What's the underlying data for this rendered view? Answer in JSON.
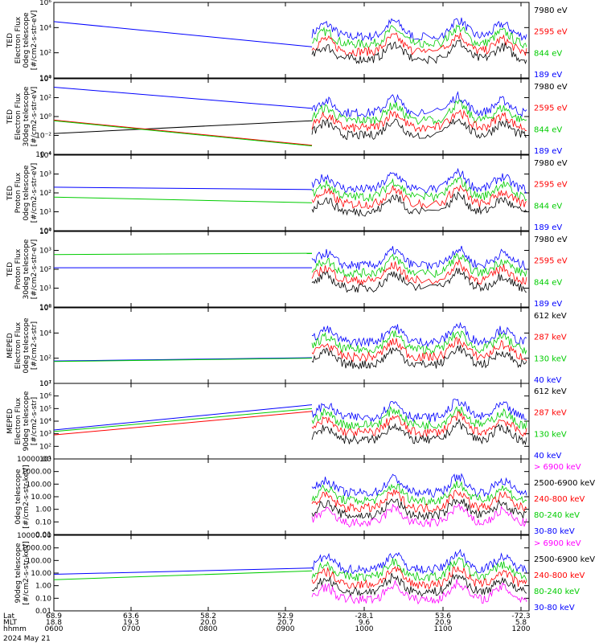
{
  "chart_data": {
    "type": "line",
    "x_axis": {
      "rows": [
        {
          "name": "Lat",
          "values": [
            "68.9",
            "63.6",
            "58.2",
            "52.9",
            "-28.1",
            "53.6",
            "-72.3"
          ]
        },
        {
          "name": "MLT",
          "values": [
            "18.8",
            "19.3",
            "20.0",
            "20.7",
            "9.6",
            "20.9",
            "5.8"
          ]
        },
        {
          "name": "hhmm",
          "values": [
            "0600",
            "0700",
            "0800",
            "0900",
            "1000",
            "1100",
            "1200"
          ]
        }
      ],
      "date": "2024 May 21"
    },
    "panels": [
      {
        "ylabel": [
          "TED",
          "Electron Flux",
          "0deg telescope",
          "[#/cm2-s-str-eV]"
        ],
        "yticks": [
          "10⁶",
          "10⁴",
          "10²",
          "10⁰"
        ],
        "log": true,
        "ylim": [
          1,
          1000000
        ],
        "legend": [
          {
            "label": "7980 eV",
            "color": "#000000"
          },
          {
            "label": "2595 eV",
            "color": "#ff0000"
          },
          {
            "label": "844 eV",
            "color": "#00cc00"
          },
          {
            "label": "189 eV",
            "color": "#0000ff"
          }
        ]
      },
      {
        "ylabel": [
          "TED",
          "Electron Flux",
          "30deg telescope",
          "[#/cm2-s-str-eV]"
        ],
        "yticks": [
          "10⁴",
          "10²",
          "10⁰",
          "10⁻²",
          "10⁻⁴"
        ],
        "log": true,
        "ylim": [
          0.0001,
          100000
        ],
        "legend": [
          {
            "label": "7980 eV",
            "color": "#000000"
          },
          {
            "label": "2595 eV",
            "color": "#ff0000"
          },
          {
            "label": "844 eV",
            "color": "#00cc00"
          },
          {
            "label": "189 eV",
            "color": "#0000ff"
          }
        ]
      },
      {
        "ylabel": [
          "TED",
          "Proton Flux",
          "0deg telescope",
          "[#/cm2-s-str-eV]"
        ],
        "yticks": [
          "10⁴",
          "10³",
          "10²",
          "10¹",
          "10⁰"
        ],
        "log": true,
        "ylim": [
          1,
          10000
        ],
        "legend": [
          {
            "label": "7980 eV",
            "color": "#000000"
          },
          {
            "label": "2595 eV",
            "color": "#ff0000"
          },
          {
            "label": "844 eV",
            "color": "#00cc00"
          },
          {
            "label": "189 eV",
            "color": "#0000ff"
          }
        ]
      },
      {
        "ylabel": [
          "TED",
          "Proton Flux",
          "30deg telescope",
          "[#/cm2-s-str-eV]"
        ],
        "yticks": [
          "10⁴",
          "10³",
          "10²",
          "10¹",
          "10⁰"
        ],
        "log": true,
        "ylim": [
          1,
          10000
        ],
        "legend": [
          {
            "label": "7980 eV",
            "color": "#000000"
          },
          {
            "label": "2595 eV",
            "color": "#ff0000"
          },
          {
            "label": "844 eV",
            "color": "#00cc00"
          },
          {
            "label": "189 eV",
            "color": "#0000ff"
          }
        ]
      },
      {
        "ylabel": [
          "MEPED",
          "Electron Flux",
          "0deg telescope",
          "[#/cm2-s-str]"
        ],
        "yticks": [
          "10⁶",
          "10⁴",
          "10²",
          "10¹"
        ],
        "log": true,
        "ylim": [
          1,
          1000000
        ],
        "legend": [
          {
            "label": "612 keV",
            "color": "#000000"
          },
          {
            "label": "287 keV",
            "color": "#ff0000"
          },
          {
            "label": "130 keV",
            "color": "#00cc00"
          },
          {
            "label": "40 keV",
            "color": "#0000ff"
          }
        ]
      },
      {
        "ylabel": [
          "MEPED",
          "Electron Flux",
          "90deg telescope",
          "[#/cm2-s-str]"
        ],
        "yticks": [
          "10⁷",
          "10⁶",
          "10⁵",
          "10⁴",
          "10³",
          "10²",
          "10¹"
        ],
        "log": true,
        "ylim": [
          10,
          10000000
        ],
        "legend": [
          {
            "label": "612 keV",
            "color": "#000000"
          },
          {
            "label": "287 keV",
            "color": "#ff0000"
          },
          {
            "label": "130 keV",
            "color": "#00cc00"
          },
          {
            "label": "40 keV",
            "color": "#0000ff"
          }
        ]
      },
      {
        "ylabel": [
          "0deg telescope",
          "[#/cm2-s-str-keV]"
        ],
        "yticks": [
          "10000.00",
          "1000.00",
          "100.00",
          "10.00",
          "1.00",
          "0.10",
          "0.01"
        ],
        "log": true,
        "ylim": [
          0.01,
          10000
        ],
        "legend": [
          {
            "label": "> 6900 keV",
            "color": "#ff00ff"
          },
          {
            "label": "2500-6900 keV",
            "color": "#000000"
          },
          {
            "label": "240-800 keV",
            "color": "#ff0000"
          },
          {
            "label": "80-240 keV",
            "color": "#00cc00"
          },
          {
            "label": "30-80 keV",
            "color": "#0000ff"
          }
        ]
      },
      {
        "ylabel": [
          "90deg telescope",
          "[#/cm2-s-str-keV]"
        ],
        "yticks": [
          "10000.00",
          "1000.00",
          "100.00",
          "10.00",
          "1.00",
          "0.10",
          "0.01"
        ],
        "log": true,
        "ylim": [
          0.01,
          10000
        ],
        "legend": [
          {
            "label": "> 6900 keV",
            "color": "#ff00ff"
          },
          {
            "label": "2500-6900 keV",
            "color": "#000000"
          },
          {
            "label": "240-800 keV",
            "color": "#ff0000"
          },
          {
            "label": "80-240 keV",
            "color": "#00cc00"
          },
          {
            "label": "30-80 keV",
            "color": "#0000ff"
          }
        ]
      }
    ],
    "series_shape": {
      "baseline_start": [
        {
          "panel": 0,
          "color": "#0000ff",
          "from": 30000,
          "to": 300
        },
        {
          "panel": 1,
          "color": "#0000ff",
          "from": 10000,
          "to": 30
        },
        {
          "panel": 1,
          "color": "#000000",
          "from": 0.03,
          "to": 1
        },
        {
          "panel": 1,
          "color": "#ff0000",
          "from": 1.2,
          "to": 0.0012
        },
        {
          "panel": 1,
          "color": "#00cc00",
          "from": 1.0,
          "to": 0.001
        },
        {
          "panel": 2,
          "color": "#0000ff",
          "from": 200,
          "to": 150
        },
        {
          "panel": 2,
          "color": "#00cc00",
          "from": 60,
          "to": 30
        },
        {
          "panel": 3,
          "color": "#00cc00",
          "from": 600,
          "to": 700
        },
        {
          "panel": 3,
          "color": "#0000ff",
          "from": 120,
          "to": 120
        },
        {
          "panel": 4,
          "color": "#0000ff",
          "from": 60,
          "to": 110
        },
        {
          "panel": 4,
          "color": "#00cc00",
          "from": 55,
          "to": 100
        },
        {
          "panel": 5,
          "color": "#0000ff",
          "from": 2000,
          "to": 200000
        },
        {
          "panel": 5,
          "color": "#00cc00",
          "from": 1500,
          "to": 100000
        },
        {
          "panel": 5,
          "color": "#ff0000",
          "from": 800,
          "to": 60000
        },
        {
          "panel": 7,
          "color": "#0000ff",
          "from": 8,
          "to": 25
        },
        {
          "panel": 7,
          "color": "#00cc00",
          "from": 3,
          "to": 15
        }
      ]
    }
  }
}
